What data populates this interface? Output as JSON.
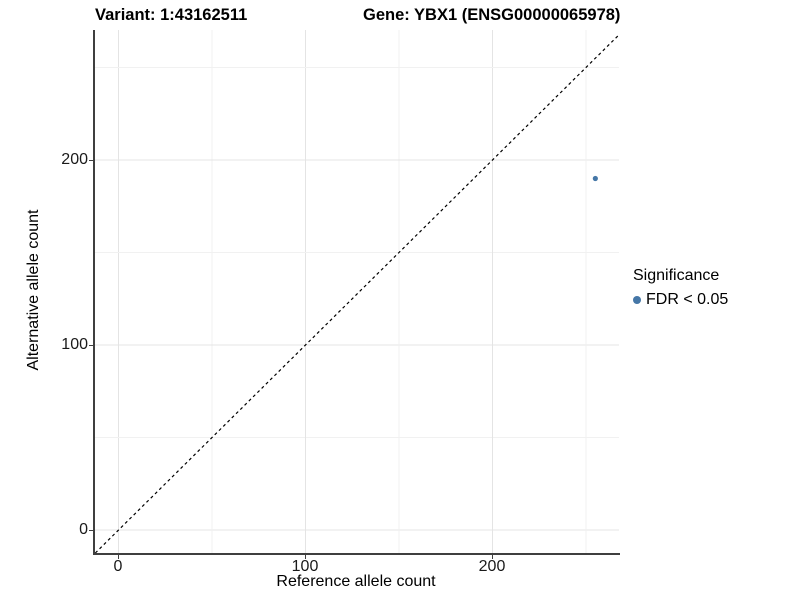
{
  "header": {
    "variant_title": "Variant: 1:43162511",
    "gene_title": "Gene: YBX1 (ENSG00000065978)"
  },
  "chart_data": {
    "type": "scatter",
    "title": "Variant: 1:43162511   Gene: YBX1 (ENSG00000065978)",
    "xlabel": "Reference allele count",
    "ylabel": "Alternative allele count",
    "x_ticks": [
      "0",
      "100",
      "200"
    ],
    "y_ticks": [
      "0",
      "100",
      "200"
    ],
    "x_tick_values": [
      0,
      100,
      200
    ],
    "y_tick_values": [
      0,
      100,
      200
    ],
    "gridline_values": [
      0,
      50,
      100,
      150,
      200,
      250
    ],
    "xlim": [
      -13,
      267
    ],
    "ylim": [
      -12,
      270
    ],
    "grid": true,
    "identity_line": {
      "equation": "y = x",
      "style": "dashed",
      "color": "#000000"
    },
    "series": [
      {
        "name": "FDR < 0.05",
        "color": "#4577A7",
        "points": [
          {
            "x": 255,
            "y": 190
          }
        ]
      }
    ],
    "legend": {
      "title": "Significance",
      "position": "right",
      "entries": [
        {
          "label": "FDR < 0.05",
          "color": "#4577A7"
        }
      ]
    }
  },
  "colors": {
    "background": "#ffffff",
    "axis_line": "#3f3f3f",
    "grid_major": "#e4e4e4",
    "grid_minor": "#f1f1f1",
    "point": "#4577A7",
    "text": "#000000"
  }
}
